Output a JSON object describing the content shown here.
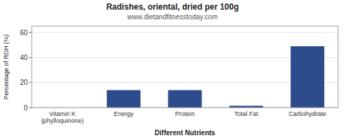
{
  "chart_data": {
    "type": "bar",
    "title": "Radishes, oriental, dried per 100g",
    "subtitle": "www.dietandfitnesstoday.com",
    "xlabel": "Different Nutrients",
    "ylabel": "Percentage of RDH (%)",
    "categories": [
      "Vitamin K (phylloquinone)",
      "Energy",
      "Protein",
      "Total Fat",
      "Carbohydrate"
    ],
    "values": [
      0,
      14,
      14,
      1.5,
      49
    ],
    "color": "#2e4b8c",
    "ylim": [
      0,
      65
    ],
    "yticks": [
      0,
      20,
      40,
      60
    ],
    "grid": true
  }
}
